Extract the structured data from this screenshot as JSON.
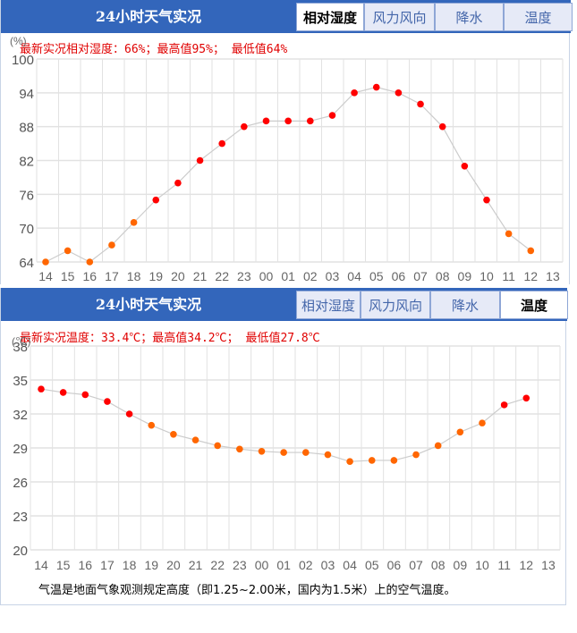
{
  "panels": [
    {
      "header_title": "24小时天气实况",
      "tabs": [
        {
          "label": "相对湿度",
          "active": true
        },
        {
          "label": "风力风向",
          "active": false
        },
        {
          "label": "降水",
          "active": false
        },
        {
          "label": "温度",
          "active": false
        }
      ],
      "summary": "最新实况相对湿度：66%；最高值95%； 最低值64%",
      "unit": "(%)"
    },
    {
      "header_title": "24小时天气实况",
      "tabs": [
        {
          "label": "相对湿度",
          "active": false
        },
        {
          "label": "风力风向",
          "active": false
        },
        {
          "label": "降水",
          "active": false
        },
        {
          "label": "温度",
          "active": true
        }
      ],
      "summary": "最新实况温度：33.4℃；最高值34.2℃； 最低值27.8℃",
      "unit": "(℃)",
      "note": "气温是地面气象观测规定高度（即1.25~2.00米，国内为1.5米）上的空气温度。"
    }
  ],
  "colors": {
    "header_bg": "#3366bb",
    "dot_high": "#ff0000",
    "dot_low": "#ff6600",
    "line": "#cccccc",
    "grid": "#e2e2e2",
    "summary_text": "#e00000"
  },
  "chart_data": [
    {
      "type": "line",
      "title": "24小时天气实况 - 相对湿度",
      "ylabel": "(%)",
      "xlabel": "",
      "categories": [
        "14",
        "15",
        "16",
        "17",
        "18",
        "19",
        "20",
        "21",
        "22",
        "23",
        "00",
        "01",
        "02",
        "03",
        "04",
        "05",
        "06",
        "07",
        "08",
        "09",
        "10",
        "11",
        "12",
        "13"
      ],
      "values": [
        64,
        66,
        64,
        67,
        71,
        75,
        78,
        82,
        85,
        88,
        89,
        89,
        89,
        90,
        94,
        95,
        94,
        92,
        88,
        81,
        75,
        69,
        66,
        null
      ],
      "yticks": [
        64,
        70,
        76,
        82,
        88,
        94,
        100
      ],
      "ylim": [
        64,
        100
      ],
      "grid": true,
      "high_threshold": 72
    },
    {
      "type": "line",
      "title": "24小时天气实况 - 温度",
      "ylabel": "(℃)",
      "xlabel": "",
      "categories": [
        "14",
        "15",
        "16",
        "17",
        "18",
        "19",
        "20",
        "21",
        "22",
        "23",
        "00",
        "01",
        "02",
        "03",
        "04",
        "05",
        "06",
        "07",
        "08",
        "09",
        "10",
        "11",
        "12",
        "13"
      ],
      "values": [
        34.2,
        33.9,
        33.7,
        33.1,
        32.0,
        31.0,
        30.2,
        29.7,
        29.2,
        28.9,
        28.7,
        28.6,
        28.6,
        28.4,
        27.8,
        27.9,
        27.9,
        28.4,
        29.2,
        30.4,
        31.2,
        32.8,
        33.4,
        null
      ],
      "yticks": [
        20,
        23,
        26,
        29,
        32,
        35,
        38
      ],
      "ylim": [
        20,
        38
      ],
      "grid": true,
      "high_threshold": 32
    }
  ]
}
